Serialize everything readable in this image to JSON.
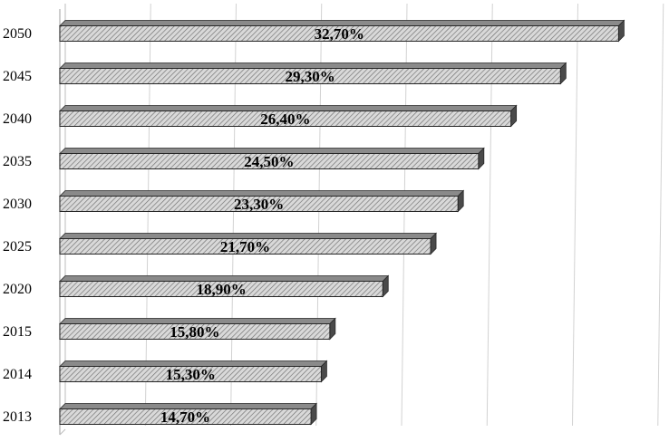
{
  "chart_data": {
    "type": "bar",
    "orientation": "horizontal",
    "categories": [
      "2050",
      "2045",
      "2040",
      "2035",
      "2030",
      "2025",
      "2020",
      "2015",
      "2014",
      "2013"
    ],
    "values": [
      32.7,
      29.3,
      26.4,
      24.5,
      23.3,
      21.7,
      18.9,
      15.8,
      15.3,
      14.7
    ],
    "data_labels": [
      "32,70%",
      "29,30%",
      "26,40%",
      "24,50%",
      "23,30%",
      "21,70%",
      "18,90%",
      "15,80%",
      "15,30%",
      "14,70%"
    ],
    "title": "",
    "xlabel": "",
    "ylabel": "",
    "xlim": [
      0,
      35
    ],
    "grid": true,
    "legend": "none",
    "colors": {
      "bar_fill": "#d9d9d9",
      "bar_hatch": "#6e6e6e",
      "bar_top": "#8a8a8a",
      "bar_side": "#4a4a4a",
      "bar_outline": "#262626",
      "grid": "#d2d2d2",
      "wall": "#bdbdbd"
    }
  }
}
